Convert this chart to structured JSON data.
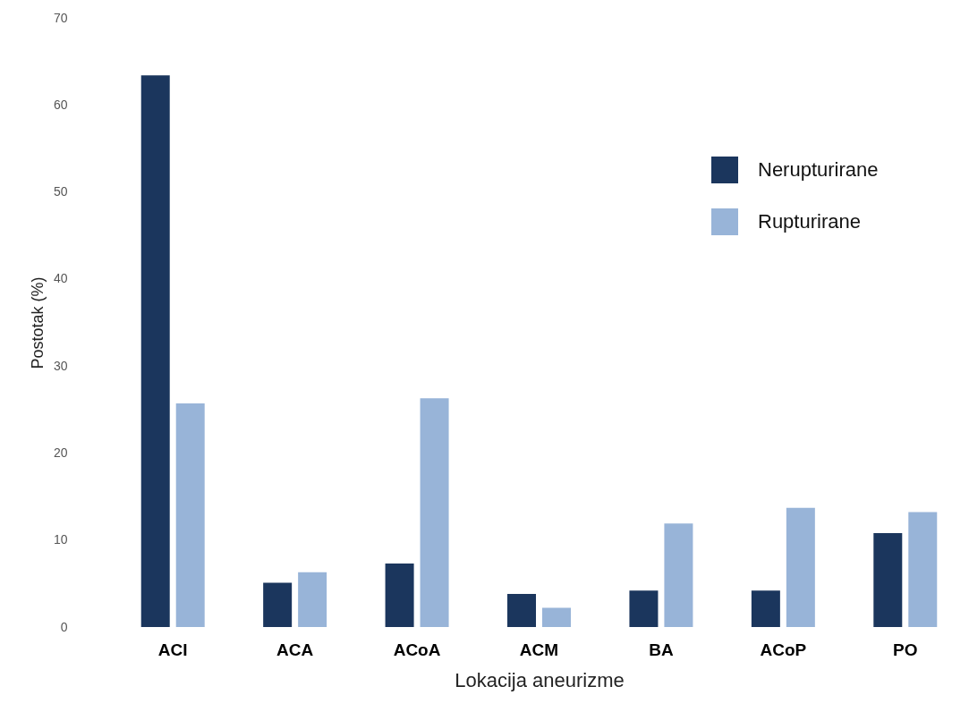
{
  "chart_data": {
    "type": "bar",
    "xlabel": "Lokacija aneurizme",
    "ylabel": "Postotak (%)",
    "categories": [
      "ACI",
      "ACA",
      "ACoA",
      "ACM",
      "BA",
      "ACoP",
      "PO"
    ],
    "series": [
      {
        "name": "Nerupturirane",
        "color": "#1b365d",
        "values": [
          63.4,
          5.1,
          7.3,
          3.8,
          4.2,
          4.2,
          10.8
        ]
      },
      {
        "name": "Rupturirane",
        "color": "#98b4d8",
        "values": [
          25.7,
          6.3,
          26.3,
          2.2,
          11.9,
          13.7,
          13.2
        ]
      }
    ],
    "ylim": [
      0,
      70
    ],
    "yticks": [
      0,
      10,
      20,
      30,
      40,
      50,
      60,
      70
    ],
    "grid": false,
    "legend": "top right"
  }
}
